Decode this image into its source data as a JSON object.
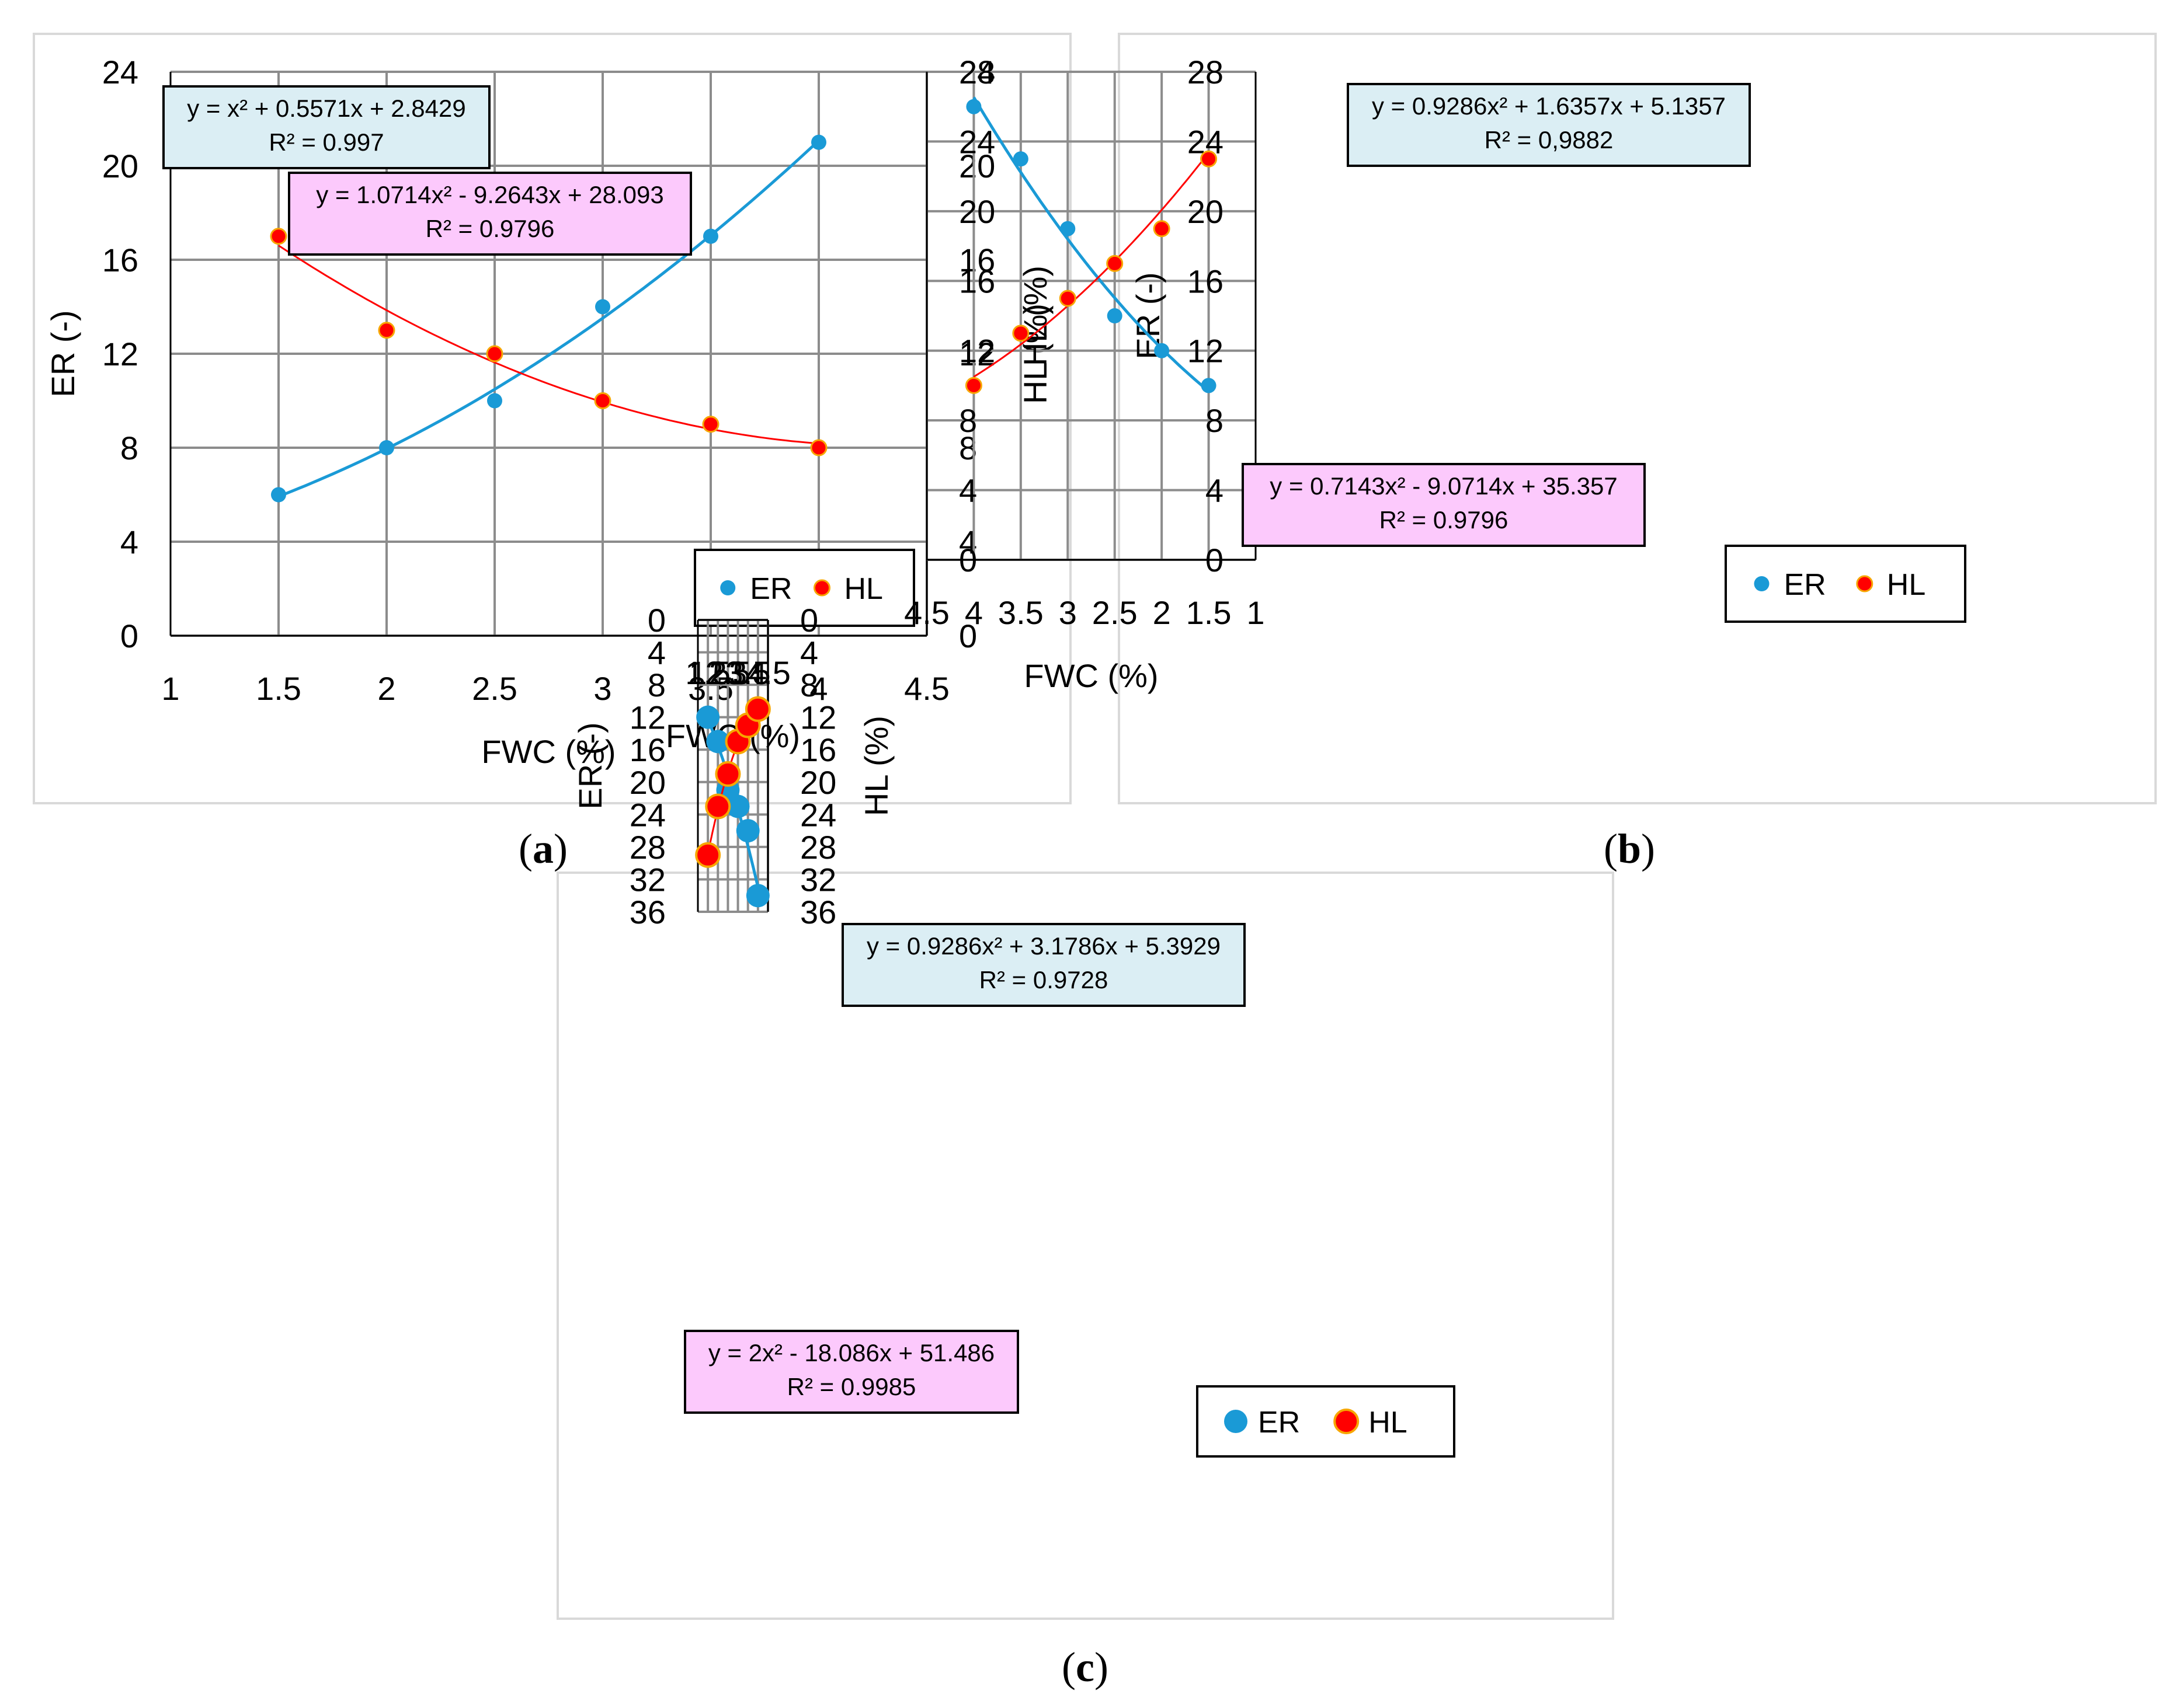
{
  "colors": {
    "er": "#1a9ad6",
    "hl": "#ff0000",
    "hl_edge": "#f7a600",
    "grid": "#8c8c8c",
    "frame": "#d9d9d9",
    "er_box_fill": "#dbeef4",
    "hl_box_fill": "#fcc9fc"
  },
  "panels": [
    {
      "label": "a",
      "chart_data": {
        "type": "scatter",
        "xlabel": "FWC (%)",
        "ylabel_left": "ER (-)",
        "ylabel_right": "HL (%)",
        "xlim": [
          1,
          4.5
        ],
        "xticks": [
          "1",
          "1.5",
          "2",
          "2.5",
          "3",
          "3.5",
          "4",
          "4.5"
        ],
        "ylim": [
          0,
          24
        ],
        "yticks": [
          "0",
          "4",
          "8",
          "12",
          "16",
          "20",
          "24"
        ],
        "legend_position": "bottom-right",
        "legend_labels": [
          "ER",
          "HL"
        ],
        "series": [
          {
            "name": "ER",
            "x": [
              1.5,
              2,
              2.5,
              3,
              3.5,
              4
            ],
            "y": [
              6,
              8,
              10,
              14,
              17,
              21
            ],
            "trendline_coeffs": [
              1,
              0.5571,
              2.8429
            ],
            "equation": "y = x² + 0.5571x + 2.8429",
            "r2": "R² = 0.997"
          },
          {
            "name": "HL",
            "x": [
              1.5,
              2,
              2.5,
              3,
              3.5,
              4
            ],
            "y": [
              17,
              13,
              12,
              10,
              9,
              8
            ],
            "trendline_coeffs": [
              1.0714,
              -9.2643,
              28.093
            ],
            "equation": "y = 1.0714x² - 9.2643x + 28.093",
            "r2": "R² = 0.9796"
          }
        ]
      }
    },
    {
      "label": "b",
      "chart_data": {
        "type": "scatter",
        "xlabel": "FWC (%)",
        "ylabel_left": "ER (-)",
        "ylabel_right": "HL (%)",
        "xlim": [
          1,
          4.5
        ],
        "xticks": [
          "1",
          "1.5",
          "2",
          "2.5",
          "3",
          "3.5",
          "4",
          "4.5"
        ],
        "ylim": [
          0,
          28
        ],
        "yticks": [
          "0",
          "4",
          "8",
          "12",
          "16",
          "20",
          "24",
          "28"
        ],
        "legend_position": "bottom-right",
        "legend_labels": [
          "ER",
          "HL"
        ],
        "series": [
          {
            "name": "ER",
            "x": [
              1.5,
              2,
              2.5,
              3,
              3.5,
              4
            ],
            "y": [
              10,
              12,
              14,
              19,
              23,
              26
            ],
            "trendline_coeffs": [
              0.9286,
              1.6357,
              5.1357
            ],
            "equation": "y = 0.9286x² + 1.6357x + 5.1357",
            "r2": "R² = 0,9882"
          },
          {
            "name": "HL",
            "x": [
              1.5,
              2,
              2.5,
              3,
              3.5,
              4
            ],
            "y": [
              23,
              19,
              17,
              15,
              13,
              10
            ],
            "trendline_coeffs": [
              0.7143,
              -9.0714,
              35.357
            ],
            "equation": "y = 0.7143x² - 9.0714x + 35.357",
            "r2": "R² = 0.9796"
          }
        ]
      }
    },
    {
      "label": "c",
      "chart_data": {
        "type": "scatter",
        "xlabel": "FWC (%)",
        "ylabel_left": "ER (-)",
        "ylabel_right": "HL (%)",
        "xlim": [
          1,
          4.5
        ],
        "xticks": [
          "1",
          "1.5",
          "2",
          "2.5",
          "3",
          "3.5",
          "4",
          "4.5"
        ],
        "ylim": [
          0,
          36
        ],
        "yticks": [
          "0",
          "4",
          "8",
          "12",
          "16",
          "20",
          "24",
          "28",
          "32",
          "36"
        ],
        "legend_position": "bottom-right",
        "legend_labels": [
          "ER",
          "HL"
        ],
        "series": [
          {
            "name": "ER",
            "x": [
              1.5,
              2,
              2.5,
              3,
              3.5,
              4
            ],
            "y": [
              12,
              15,
              21,
              23,
              26,
              34
            ],
            "trendline_coeffs": [
              0.9286,
              3.1786,
              5.3929
            ],
            "equation": "y = 0.9286x² + 3.1786x + 5.3929",
            "r2": "R² = 0.9728"
          },
          {
            "name": "HL",
            "x": [
              1.5,
              2,
              2.5,
              3,
              3.5,
              4
            ],
            "y": [
              29,
              23,
              19,
              15,
              13,
              11
            ],
            "trendline_coeffs": [
              2,
              -18.086,
              51.486
            ],
            "equation": "y = 2x² - 18.086x + 51.486",
            "r2": "R² = 0.9985"
          }
        ]
      }
    }
  ]
}
